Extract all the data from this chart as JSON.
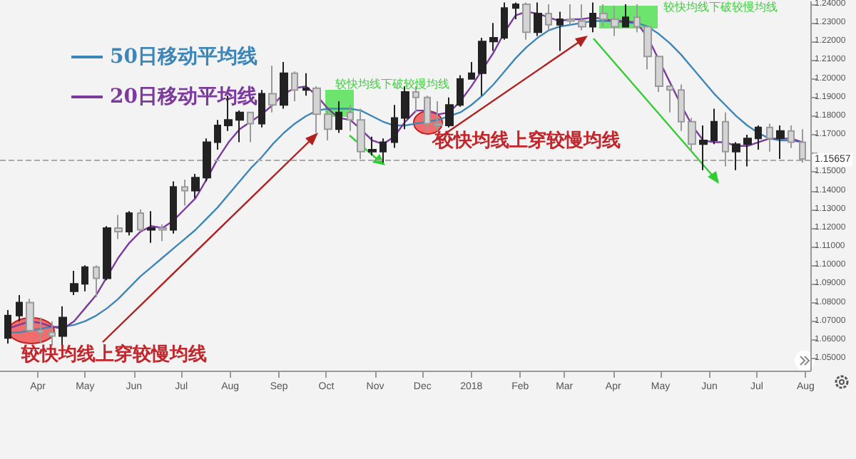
{
  "chart_data": {
    "type": "candlestick",
    "x": [
      "2017-03-13",
      "2017-03-20",
      "2017-03-27",
      "2017-04-03",
      "2017-04-10",
      "2017-04-17",
      "2017-04-24",
      "2017-05-01",
      "2017-05-08",
      "2017-05-15",
      "2017-05-22",
      "2017-05-29",
      "2017-06-05",
      "2017-06-12",
      "2017-06-19",
      "2017-06-26",
      "2017-07-03",
      "2017-07-10",
      "2017-07-17",
      "2017-07-24",
      "2017-07-31",
      "2017-08-07",
      "2017-08-14",
      "2017-08-21",
      "2017-08-28",
      "2017-09-04",
      "2017-09-11",
      "2017-09-18",
      "2017-09-25",
      "2017-10-02",
      "2017-10-09",
      "2017-10-16",
      "2017-10-23",
      "2017-10-30",
      "2017-11-06",
      "2017-11-13",
      "2017-11-20",
      "2017-11-27",
      "2017-12-04",
      "2017-12-11",
      "2017-12-18",
      "2017-12-25",
      "2018-01-01",
      "2018-01-08",
      "2018-01-15",
      "2018-01-22",
      "2018-01-29",
      "2018-02-05",
      "2018-02-12",
      "2018-02-19",
      "2018-02-26",
      "2018-03-05",
      "2018-03-12",
      "2018-03-19",
      "2018-03-26",
      "2018-04-02",
      "2018-04-09",
      "2018-04-16",
      "2018-04-23",
      "2018-04-30",
      "2018-05-07",
      "2018-05-14",
      "2018-05-21",
      "2018-05-28",
      "2018-06-04",
      "2018-06-11",
      "2018-06-18",
      "2018-06-25",
      "2018-07-02",
      "2018-07-09",
      "2018-07-16",
      "2018-07-23",
      "2018-07-30"
    ],
    "series": [
      {
        "type": "candlestick",
        "colors": [
          "#222222",
          "#222222",
          "#d4d4d4",
          "#d4d4d4",
          "#d4d4d4",
          "#222222",
          "#222222",
          "#222222",
          "#d4d4d4",
          "#222222",
          "#d4d4d4",
          "#222222",
          "#d4d4d4",
          "#222222",
          "#d4d4d4",
          "#222222",
          "#d4d4d4",
          "#222222",
          "#222222",
          "#222222",
          "#222222",
          "#222222",
          "#d4d4d4",
          "#222222",
          "#d4d4d4",
          "#222222",
          "#d4d4d4",
          "#222222",
          "#d4d4d4",
          "#d4d4d4",
          "#222222",
          "#d4d4d4",
          "#d4d4d4",
          "#222222",
          "#222222",
          "#222222",
          "#222222",
          "#d4d4d4",
          "#d4d4d4",
          "#d4d4d4",
          "#222222",
          "#222222",
          "#222222",
          "#222222",
          "#222222",
          "#222222",
          "#222222",
          "#d4d4d4",
          "#222222",
          "#d4d4d4",
          "#222222",
          "#d4d4d4",
          "#d4d4d4",
          "#222222",
          "#d4d4d4",
          "#d4d4d4",
          "#222222",
          "#d4d4d4",
          "#d4d4d4",
          "#d4d4d4",
          "#d4d4d4",
          "#d4d4d4",
          "#d4d4d4",
          "#222222",
          "#222222",
          "#d4d4d4",
          "#222222",
          "#222222",
          "#222222",
          "#d4d4d4",
          "#222222",
          "#d4d4d4",
          "#d4d4d4"
        ],
        "ohlc": [
          [
            1.061,
            1.076,
            1.058,
            1.073
          ],
          [
            1.073,
            1.084,
            1.07,
            1.08
          ],
          [
            1.08,
            1.082,
            1.064,
            1.065
          ],
          [
            1.065,
            1.072,
            1.058,
            1.064
          ],
          [
            1.064,
            1.07,
            1.057,
            1.062
          ],
          [
            1.062,
            1.078,
            1.057,
            1.072
          ],
          [
            1.086,
            1.097,
            1.084,
            1.09
          ],
          [
            1.09,
            1.1,
            1.086,
            1.099
          ],
          [
            1.099,
            1.1,
            1.083,
            1.093
          ],
          [
            1.093,
            1.121,
            1.092,
            1.12
          ],
          [
            1.12,
            1.127,
            1.114,
            1.118
          ],
          [
            1.118,
            1.129,
            1.116,
            1.128
          ],
          [
            1.128,
            1.13,
            1.118,
            1.119
          ],
          [
            1.119,
            1.129,
            1.112,
            1.12
          ],
          [
            1.12,
            1.122,
            1.113,
            1.119
          ],
          [
            1.119,
            1.145,
            1.117,
            1.142
          ],
          [
            1.142,
            1.146,
            1.132,
            1.14
          ],
          [
            1.14,
            1.149,
            1.136,
            1.147
          ],
          [
            1.147,
            1.168,
            1.145,
            1.166
          ],
          [
            1.166,
            1.178,
            1.162,
            1.175
          ],
          [
            1.175,
            1.191,
            1.172,
            1.178
          ],
          [
            1.178,
            1.183,
            1.166,
            1.182
          ],
          [
            1.182,
            1.182,
            1.166,
            1.176
          ],
          [
            1.176,
            1.194,
            1.174,
            1.192
          ],
          [
            1.192,
            1.207,
            1.182,
            1.186
          ],
          [
            1.186,
            1.209,
            1.184,
            1.203
          ],
          [
            1.203,
            1.204,
            1.188,
            1.194
          ],
          [
            1.194,
            1.203,
            1.191,
            1.195
          ],
          [
            1.195,
            1.196,
            1.171,
            1.181
          ],
          [
            1.181,
            1.183,
            1.167,
            1.173
          ],
          [
            1.173,
            1.188,
            1.171,
            1.182
          ],
          [
            1.182,
            1.186,
            1.172,
            1.178
          ],
          [
            1.178,
            1.184,
            1.157,
            1.161
          ],
          [
            1.161,
            1.169,
            1.159,
            1.162
          ],
          [
            1.161,
            1.168,
            1.155,
            1.166
          ],
          [
            1.166,
            1.186,
            1.163,
            1.179
          ],
          [
            1.179,
            1.196,
            1.173,
            1.193
          ],
          [
            1.193,
            1.196,
            1.182,
            1.19
          ],
          [
            1.19,
            1.191,
            1.172,
            1.176
          ],
          [
            1.176,
            1.188,
            1.172,
            1.175
          ],
          [
            1.175,
            1.19,
            1.174,
            1.186
          ],
          [
            1.186,
            1.202,
            1.185,
            1.2
          ],
          [
            1.2,
            1.209,
            1.2,
            1.203
          ],
          [
            1.203,
            1.222,
            1.191,
            1.22
          ],
          [
            1.22,
            1.23,
            1.215,
            1.222
          ],
          [
            1.222,
            1.241,
            1.221,
            1.238
          ],
          [
            1.238,
            1.241,
            1.232,
            1.24
          ],
          [
            1.24,
            1.241,
            1.221,
            1.225
          ],
          [
            1.225,
            1.241,
            1.223,
            1.235
          ],
          [
            1.235,
            1.24,
            1.226,
            1.229
          ],
          [
            1.229,
            1.236,
            1.215,
            1.232
          ],
          [
            1.232,
            1.24,
            1.229,
            1.231
          ],
          [
            1.231,
            1.24,
            1.226,
            1.228
          ],
          [
            1.228,
            1.241,
            1.225,
            1.235
          ],
          [
            1.235,
            1.24,
            1.228,
            1.232
          ],
          [
            1.232,
            1.239,
            1.223,
            1.228
          ],
          [
            1.228,
            1.24,
            1.228,
            1.233
          ],
          [
            1.233,
            1.24,
            1.225,
            1.228
          ],
          [
            1.228,
            1.228,
            1.205,
            1.212
          ],
          [
            1.212,
            1.212,
            1.193,
            1.196
          ],
          [
            1.196,
            1.196,
            1.182,
            1.194
          ],
          [
            1.194,
            1.197,
            1.172,
            1.177
          ],
          [
            1.177,
            1.179,
            1.161,
            1.165
          ],
          [
            1.165,
            1.175,
            1.151,
            1.167
          ],
          [
            1.167,
            1.184,
            1.165,
            1.177
          ],
          [
            1.177,
            1.182,
            1.153,
            1.161
          ],
          [
            1.161,
            1.166,
            1.151,
            1.165
          ],
          [
            1.165,
            1.17,
            1.153,
            1.168
          ],
          [
            1.168,
            1.175,
            1.162,
            1.174
          ],
          [
            1.174,
            1.176,
            1.161,
            1.168
          ],
          [
            1.168,
            1.175,
            1.157,
            1.172
          ],
          [
            1.172,
            1.175,
            1.163,
            1.166
          ],
          [
            1.166,
            1.173,
            1.155,
            1.157
          ]
        ]
      },
      {
        "type": "line",
        "name": "50日移动平均线",
        "color": "#3f86b8",
        "values": [
          1.064,
          1.064,
          1.065,
          1.066,
          1.067,
          1.067,
          1.068,
          1.07,
          1.073,
          1.077,
          1.082,
          1.088,
          1.094,
          1.099,
          1.104,
          1.109,
          1.114,
          1.119,
          1.125,
          1.131,
          1.138,
          1.145,
          1.152,
          1.158,
          1.165,
          1.171,
          1.176,
          1.18,
          1.183,
          1.184,
          1.184,
          1.184,
          1.183,
          1.18,
          1.177,
          1.175,
          1.175,
          1.176,
          1.177,
          1.178,
          1.18,
          1.182,
          1.186,
          1.191,
          1.197,
          1.204,
          1.211,
          1.217,
          1.222,
          1.226,
          1.228,
          1.229,
          1.23,
          1.231,
          1.231,
          1.231,
          1.23,
          1.23,
          1.228,
          1.224,
          1.219,
          1.213,
          1.206,
          1.199,
          1.192,
          1.186,
          1.18,
          1.175,
          1.171,
          1.168,
          1.167,
          1.167,
          1.166
        ]
      },
      {
        "type": "line",
        "name": "20日移动平均线",
        "color": "#7b3b9c",
        "values": [
          1.066,
          1.068,
          1.07,
          1.069,
          1.067,
          1.066,
          1.07,
          1.077,
          1.084,
          1.094,
          1.104,
          1.112,
          1.118,
          1.121,
          1.12,
          1.124,
          1.13,
          1.136,
          1.146,
          1.157,
          1.166,
          1.173,
          1.177,
          1.181,
          1.186,
          1.192,
          1.195,
          1.196,
          1.191,
          1.184,
          1.179,
          1.178,
          1.173,
          1.167,
          1.165,
          1.169,
          1.177,
          1.183,
          1.183,
          1.181,
          1.182,
          1.188,
          1.196,
          1.205,
          1.214,
          1.225,
          1.234,
          1.236,
          1.235,
          1.233,
          1.231,
          1.232,
          1.232,
          1.233,
          1.232,
          1.231,
          1.231,
          1.23,
          1.222,
          1.21,
          1.198,
          1.186,
          1.175,
          1.167,
          1.166,
          1.166,
          1.164,
          1.164,
          1.166,
          1.168,
          1.168,
          1.168,
          1.166
        ]
      }
    ],
    "xlim": [
      "2017-03-08",
      "2018-08-04"
    ],
    "xticks": [
      {
        "value": "2017-04-01",
        "label": "Apr"
      },
      {
        "value": "2017-05-01",
        "label": "May"
      },
      {
        "value": "2017-06-01",
        "label": "Jun"
      },
      {
        "value": "2017-07-01",
        "label": "Jul"
      },
      {
        "value": "2017-08-01",
        "label": "Aug"
      },
      {
        "value": "2017-09-01",
        "label": "Sep"
      },
      {
        "value": "2017-10-01",
        "label": "Oct"
      },
      {
        "value": "2017-11-01",
        "label": "Nov"
      },
      {
        "value": "2017-12-01",
        "label": "Dec"
      },
      {
        "value": "2018-01-01",
        "label": "2018"
      },
      {
        "value": "2018-02-01",
        "label": "Feb"
      },
      {
        "value": "2018-03-01",
        "label": "Mar"
      },
      {
        "value": "2018-04-01",
        "label": "Apr"
      },
      {
        "value": "2018-05-01",
        "label": "May"
      },
      {
        "value": "2018-06-01",
        "label": "Jun"
      },
      {
        "value": "2018-07-01",
        "label": "Jul"
      },
      {
        "value": "2018-08-01",
        "label": "Aug"
      }
    ],
    "ylim": [
      1.0435,
      1.2413
    ],
    "yticks": [
      {
        "value": 1.05,
        "label": "1.05000"
      },
      {
        "value": 1.06,
        "label": "1.06000"
      },
      {
        "value": 1.07,
        "label": "1.07000"
      },
      {
        "value": 1.08,
        "label": "1.08000"
      },
      {
        "value": 1.09,
        "label": "1.09000"
      },
      {
        "value": 1.1,
        "label": "1.10000"
      },
      {
        "value": 1.11,
        "label": "1.11000"
      },
      {
        "value": 1.12,
        "label": "1.12000"
      },
      {
        "value": 1.13,
        "label": "1.13000"
      },
      {
        "value": 1.14,
        "label": "1.14000"
      },
      {
        "value": 1.15,
        "label": "1.15000"
      },
      {
        "value": 1.16,
        "label": null
      },
      {
        "value": 1.17,
        "label": "1.17000"
      },
      {
        "value": 1.18,
        "label": "1.18000"
      },
      {
        "value": 1.19,
        "label": "1.19000"
      },
      {
        "value": 1.2,
        "label": "1.20000"
      },
      {
        "value": 1.21,
        "label": "1.21000"
      },
      {
        "value": 1.22,
        "label": "1.22000"
      },
      {
        "value": 1.23,
        "label": "1.23000"
      },
      {
        "value": 1.24,
        "label": "1.24000"
      }
    ],
    "legend": "top left",
    "marker": "none",
    "ref_lines": [
      {
        "axis": "y",
        "value": 1.15657,
        "label": "1.15657"
      }
    ],
    "annotations": [
      "较快均线上穿较慢均线",
      "较快均线上穿较慢均线",
      "较快均线下破较慢均线",
      "较快均线下破较慢均线"
    ]
  }
}
